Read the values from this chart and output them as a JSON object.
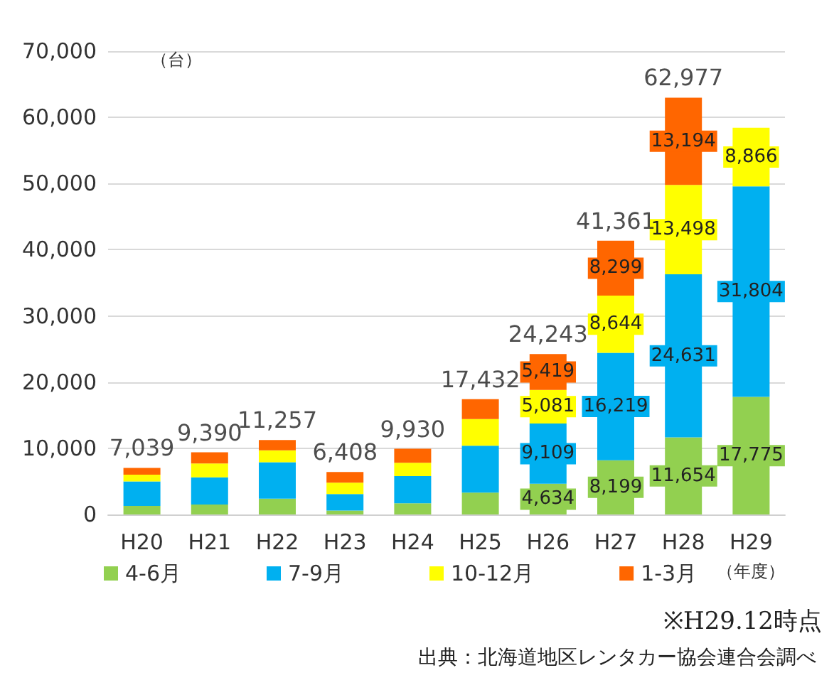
{
  "chart_data": {
    "type": "bar",
    "stacked": true,
    "ylabel": "（台）",
    "xlabel": "（年度）",
    "categories": [
      "H20",
      "H21",
      "H22",
      "H23",
      "H24",
      "H25",
      "H26",
      "H27",
      "H28",
      "H29"
    ],
    "series": [
      {
        "name": "4-6月",
        "color": "#92d050",
        "values": [
          1300,
          1500,
          2400,
          600,
          1700,
          3300,
          4634,
          8199,
          11654,
          17775
        ],
        "value_labels": [
          null,
          null,
          null,
          null,
          null,
          null,
          "4,634",
          "8,199",
          "11,654",
          "17,775"
        ]
      },
      {
        "name": "7-9月",
        "color": "#00b0f0",
        "values": [
          3700,
          4100,
          5500,
          2500,
          4100,
          7100,
          9109,
          16219,
          24631,
          31804
        ],
        "value_labels": [
          null,
          null,
          null,
          null,
          null,
          null,
          "9,109",
          "16,219",
          "24,631",
          "31,804"
        ]
      },
      {
        "name": "10-12月",
        "color": "#ffff00",
        "values": [
          1000,
          2100,
          1800,
          1700,
          2000,
          4000,
          5081,
          8644,
          13498,
          8866
        ],
        "value_labels": [
          null,
          null,
          null,
          null,
          null,
          null,
          "5,081",
          "8,644",
          "13,498",
          "8,866"
        ]
      },
      {
        "name": "1-3月",
        "color": "#ff6600",
        "values": [
          1039,
          1690,
          1557,
          1608,
          2130,
          3032,
          5419,
          8299,
          13194,
          null
        ],
        "value_labels": [
          null,
          null,
          null,
          null,
          null,
          null,
          "5,419",
          "8,299",
          "13,194",
          null
        ]
      }
    ],
    "totals": [
      "7,039",
      "9,390",
      "11,257",
      "6,408",
      "9,930",
      "17,432",
      "24,243",
      "41,361",
      "62,977",
      null
    ],
    "ylim": [
      0,
      70000
    ],
    "yticks": [
      0,
      {
        "value": 10000,
        "label": "10,000"
      },
      {
        "value": 20000,
        "label": "20,000"
      },
      {
        "value": 30000,
        "label": "30,000"
      },
      {
        "value": 40000,
        "label": "40,000"
      },
      {
        "value": 50000,
        "label": "50,000"
      },
      {
        "value": 60000,
        "label": "60,000"
      },
      {
        "value": 70000,
        "label": "70,000"
      }
    ],
    "grid": "y",
    "legend": "bottom",
    "annotations": [
      "※H29.12時点",
      "出典：北海道地区レンタカー協会連合会調べ"
    ]
  }
}
